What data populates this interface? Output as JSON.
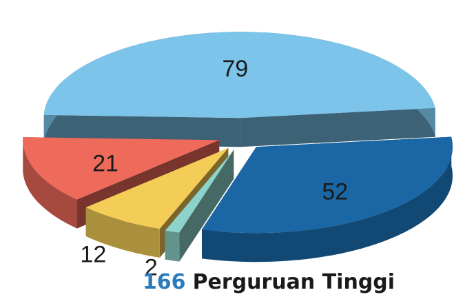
{
  "chart_data": {
    "type": "pie3d",
    "title": {
      "count": "166",
      "text": "Perguruan Tinggi"
    },
    "series": [
      {
        "values": [
          79,
          52,
          2,
          12,
          21
        ],
        "colors": [
          "#7cc4ea",
          "#1b67a6",
          "#8ed3cb",
          "#f4cd57",
          "#ee6b5b"
        ]
      }
    ]
  }
}
